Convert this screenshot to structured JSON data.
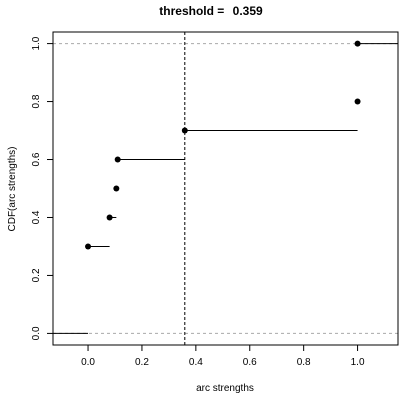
{
  "chart_data": {
    "type": "scatter",
    "title_label": "threshold =",
    "title_value": "0.359",
    "xlabel": "arc strengths",
    "ylabel": "CDF(arc strengths)",
    "xlim": [
      -0.13,
      1.15
    ],
    "ylim": [
      -0.04,
      1.04
    ],
    "x_ticks": [
      0.0,
      0.2,
      0.4,
      0.6,
      0.8,
      1.0
    ],
    "x_tick_labels": [
      "0.0",
      "0.2",
      "0.4",
      "0.6",
      "0.8",
      "1.0"
    ],
    "y_ticks": [
      0.0,
      0.2,
      0.4,
      0.6,
      0.8,
      1.0
    ],
    "y_tick_labels": [
      "0.0",
      "0.2",
      "0.4",
      "0.6",
      "0.8",
      "1.0"
    ],
    "threshold": 0.359,
    "reference_lines_y": [
      0.0,
      1.0
    ],
    "steps": [
      {
        "x0": -0.13,
        "x1": 0.0,
        "y": 0.0
      },
      {
        "x0": 0.0,
        "x1": 0.08,
        "y": 0.3
      },
      {
        "x0": 0.08,
        "x1": 0.105,
        "y": 0.4
      },
      {
        "x0": 0.105,
        "x1": 0.11,
        "y": 0.5
      },
      {
        "x0": 0.11,
        "x1": 0.359,
        "y": 0.6
      },
      {
        "x0": 0.359,
        "x1": 1.0,
        "y": 0.7
      },
      {
        "x0": 1.0,
        "x1": 1.0,
        "y": 0.8
      },
      {
        "x0": 1.0,
        "x1": 1.15,
        "y": 1.0
      }
    ],
    "points": [
      {
        "x": 0.0,
        "y": 0.3
      },
      {
        "x": 0.08,
        "y": 0.4
      },
      {
        "x": 0.105,
        "y": 0.5
      },
      {
        "x": 0.11,
        "y": 0.6
      },
      {
        "x": 0.359,
        "y": 0.7
      },
      {
        "x": 1.0,
        "y": 0.8
      },
      {
        "x": 1.0,
        "y": 1.0
      }
    ],
    "grid": false
  }
}
